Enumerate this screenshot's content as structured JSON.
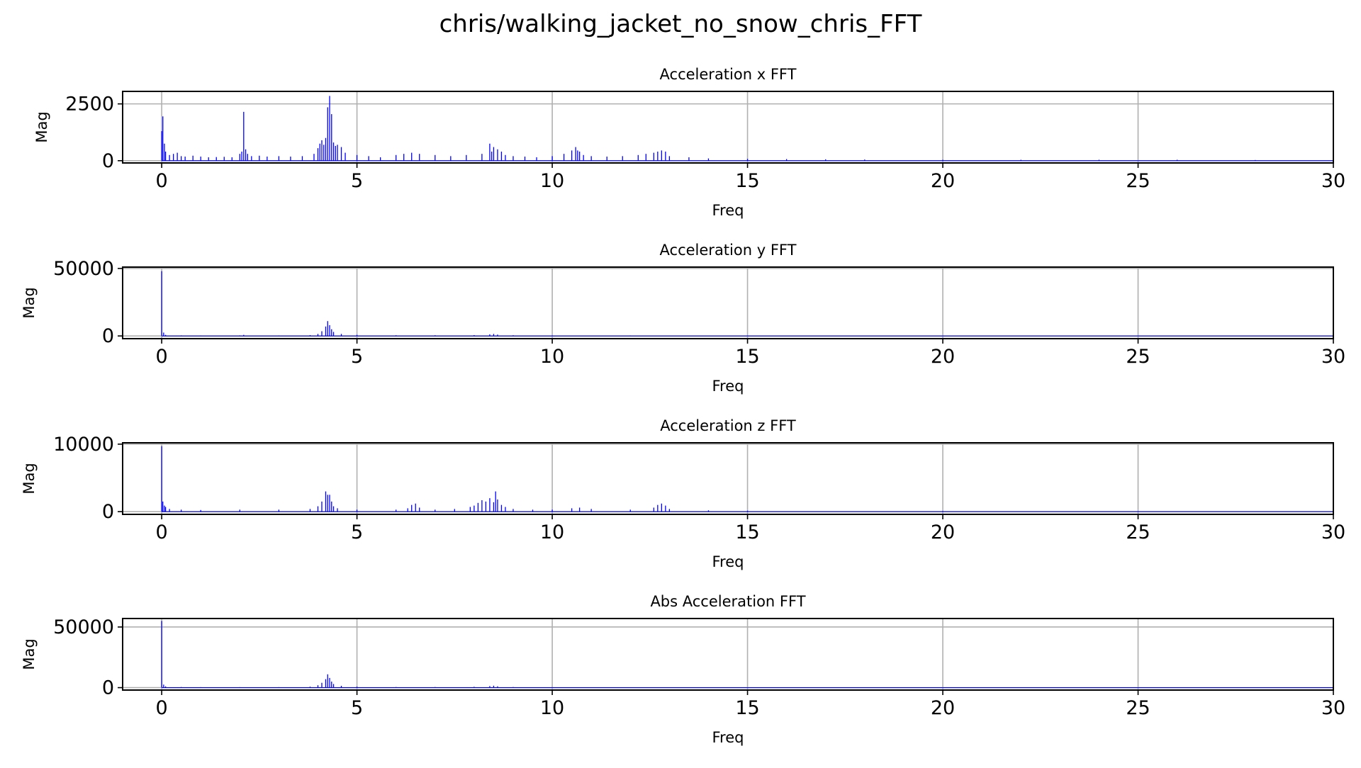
{
  "figure": {
    "title": "chris/walking_jacket_no_snow_chris_FFT"
  },
  "chart_data": [
    {
      "type": "bar",
      "title": "Acceleration x FFT",
      "xlabel": "Freq",
      "ylabel": "Mag",
      "xlim": [
        -1,
        30
      ],
      "ylim": [
        -100,
        3050
      ],
      "xticks": [
        0,
        5,
        10,
        15,
        20,
        25,
        30
      ],
      "yticks": [
        0,
        2500
      ],
      "grid": true,
      "color": "#0000ff",
      "series": [
        {
          "x": [
            0,
            0.03,
            0.07,
            0.1,
            0.2,
            0.3,
            0.4,
            0.5,
            0.6,
            0.8,
            1.0,
            1.2,
            1.4,
            1.6,
            1.8,
            2.0,
            2.05,
            2.1,
            2.15,
            2.2,
            2.3,
            2.5,
            2.7,
            3.0,
            3.3,
            3.6,
            3.9,
            4.0,
            4.05,
            4.1,
            4.15,
            4.2,
            4.25,
            4.3,
            4.35,
            4.4,
            4.45,
            4.5,
            4.6,
            4.7,
            5.0,
            5.3,
            5.6,
            6.0,
            6.2,
            6.4,
            6.6,
            7.0,
            7.4,
            7.8,
            8.2,
            8.4,
            8.45,
            8.5,
            8.6,
            8.7,
            8.8,
            9.0,
            9.3,
            9.6,
            10.0,
            10.3,
            10.5,
            10.6,
            10.65,
            10.7,
            10.8,
            11.0,
            11.4,
            11.8,
            12.2,
            12.4,
            12.6,
            12.7,
            12.8,
            12.9,
            13.0,
            13.5,
            14,
            15,
            16,
            17,
            18,
            20,
            22,
            24,
            26,
            28,
            30
          ],
          "values": [
            1300,
            1950,
            750,
            400,
            250,
            300,
            350,
            200,
            180,
            220,
            180,
            150,
            160,
            170,
            150,
            300,
            400,
            2150,
            500,
            300,
            200,
            220,
            180,
            200,
            180,
            200,
            300,
            550,
            750,
            900,
            700,
            1000,
            2350,
            2850,
            2050,
            800,
            650,
            700,
            600,
            350,
            250,
            200,
            150,
            250,
            300,
            350,
            300,
            250,
            200,
            250,
            300,
            750,
            400,
            600,
            500,
            400,
            250,
            200,
            180,
            150,
            200,
            300,
            450,
            600,
            450,
            400,
            250,
            200,
            180,
            200,
            250,
            300,
            350,
            400,
            450,
            400,
            200,
            150,
            100,
            80,
            70,
            60,
            50,
            40,
            40,
            40,
            40,
            30,
            30
          ]
        }
      ]
    },
    {
      "type": "bar",
      "title": "Acceleration y FFT",
      "xlabel": "Freq",
      "ylabel": "Mag",
      "xlim": [
        -1,
        30
      ],
      "ylim": [
        -2000,
        51000
      ],
      "xticks": [
        0,
        5,
        10,
        15,
        20,
        25,
        30
      ],
      "yticks": [
        0,
        50000
      ],
      "grid": true,
      "color": "#0000ff",
      "series": [
        {
          "x": [
            0,
            0.05,
            0.1,
            0.5,
            1,
            2,
            2.1,
            3,
            3.8,
            4.0,
            4.1,
            4.2,
            4.25,
            4.3,
            4.35,
            4.4,
            4.6,
            5,
            6,
            7,
            8,
            8.4,
            8.5,
            8.6,
            9,
            10,
            12,
            15,
            20,
            25,
            30
          ],
          "values": [
            48000,
            2500,
            800,
            400,
            300,
            400,
            800,
            300,
            600,
            1500,
            3500,
            7000,
            11000,
            8000,
            5000,
            3000,
            1500,
            800,
            500,
            500,
            600,
            1200,
            1500,
            1000,
            500,
            400,
            300,
            250,
            200,
            200,
            200
          ]
        }
      ]
    },
    {
      "type": "bar",
      "title": "Acceleration z FFT",
      "xlabel": "Freq",
      "ylabel": "Mag",
      "xlim": [
        -1,
        30
      ],
      "ylim": [
        -400,
        10200
      ],
      "xticks": [
        0,
        5,
        10,
        15,
        20,
        25,
        30
      ],
      "yticks": [
        0,
        10000
      ],
      "grid": true,
      "color": "#0000ff",
      "series": [
        {
          "x": [
            0,
            0.03,
            0.07,
            0.1,
            0.2,
            0.5,
            1,
            2,
            3,
            3.8,
            4.0,
            4.1,
            4.2,
            4.25,
            4.3,
            4.35,
            4.4,
            4.5,
            5,
            6,
            6.3,
            6.4,
            6.5,
            6.6,
            7,
            7.5,
            7.9,
            8.0,
            8.1,
            8.2,
            8.3,
            8.4,
            8.5,
            8.55,
            8.6,
            8.7,
            8.8,
            9.0,
            9.5,
            10,
            10.5,
            10.7,
            11,
            12,
            12.6,
            12.7,
            12.8,
            12.9,
            13.0,
            14,
            15,
            20,
            25,
            30
          ],
          "values": [
            9700,
            1500,
            900,
            700,
            400,
            300,
            250,
            300,
            300,
            400,
            800,
            1500,
            3000,
            2500,
            2500,
            1500,
            800,
            500,
            300,
            300,
            500,
            1000,
            1200,
            600,
            300,
            400,
            700,
            900,
            1300,
            1700,
            1500,
            2000,
            1400,
            3000,
            1800,
            1000,
            700,
            400,
            300,
            300,
            500,
            600,
            400,
            300,
            600,
            1000,
            1200,
            900,
            400,
            200,
            150,
            100,
            80,
            80
          ]
        }
      ]
    },
    {
      "type": "bar",
      "title": "Abs Acceleration FFT",
      "xlabel": "Freq",
      "ylabel": "Mag",
      "xlim": [
        -1,
        30
      ],
      "ylim": [
        -2000,
        57000
      ],
      "xticks": [
        0,
        5,
        10,
        15,
        20,
        25,
        30
      ],
      "yticks": [
        0,
        50000
      ],
      "grid": true,
      "color": "#0000ff",
      "series": [
        {
          "x": [
            0,
            0.05,
            0.1,
            0.5,
            1,
            2,
            3,
            3.8,
            4.0,
            4.1,
            4.2,
            4.25,
            4.3,
            4.35,
            4.4,
            4.6,
            5,
            6,
            7,
            8,
            8.4,
            8.5,
            8.6,
            9,
            10,
            12,
            15,
            20,
            25,
            30
          ],
          "values": [
            55000,
            2500,
            1000,
            500,
            400,
            400,
            400,
            800,
            2000,
            4000,
            7000,
            11000,
            8000,
            5000,
            3000,
            1500,
            800,
            500,
            500,
            700,
            1300,
            1600,
            1100,
            500,
            400,
            300,
            250,
            200,
            200,
            200
          ]
        }
      ]
    }
  ]
}
